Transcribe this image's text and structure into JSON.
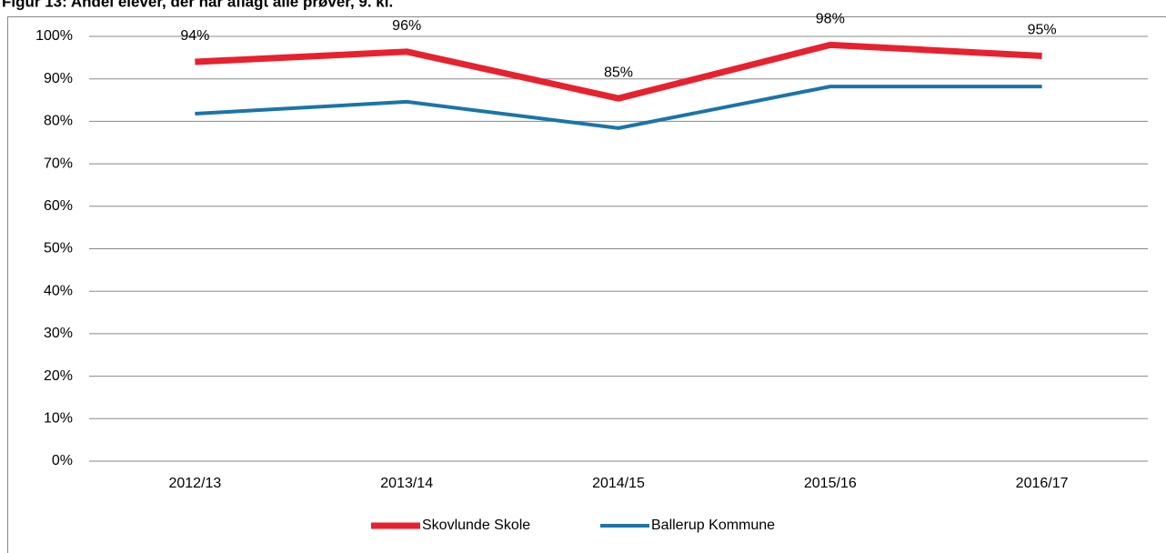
{
  "chart_data": {
    "type": "line",
    "title": "Figur 13: Andel elever, der har aflagt alle prøver, 9. kl.",
    "categories": [
      "2012/13",
      "2013/14",
      "2014/15",
      "2015/16",
      "2016/17"
    ],
    "series": [
      {
        "name": "Skovlunde Skole",
        "color": "#e8212e",
        "values": [
          94,
          96.4,
          85.4,
          98,
          95.4
        ],
        "value_labels": [
          "94%",
          "96%",
          "85%",
          "98%",
          "95%"
        ]
      },
      {
        "name": "Ballerup Kommune",
        "color": "#1a75a8",
        "values": [
          81.8,
          84.6,
          78.4,
          88.2,
          88.2
        ]
      }
    ],
    "ylim": [
      0,
      100
    ],
    "yticks": [
      {
        "value": 0,
        "label": "0%"
      },
      {
        "value": 10,
        "label": "10%"
      },
      {
        "value": 20,
        "label": "20%"
      },
      {
        "value": 30,
        "label": "30%"
      },
      {
        "value": 40,
        "label": "40%"
      },
      {
        "value": 50,
        "label": "50%"
      },
      {
        "value": 60,
        "label": "60%"
      },
      {
        "value": 70,
        "label": "70%"
      },
      {
        "value": 80,
        "label": "80%"
      },
      {
        "value": 90,
        "label": "90%"
      },
      {
        "value": 100,
        "label": "100%"
      }
    ],
    "grid": true,
    "legend": "bottom"
  }
}
